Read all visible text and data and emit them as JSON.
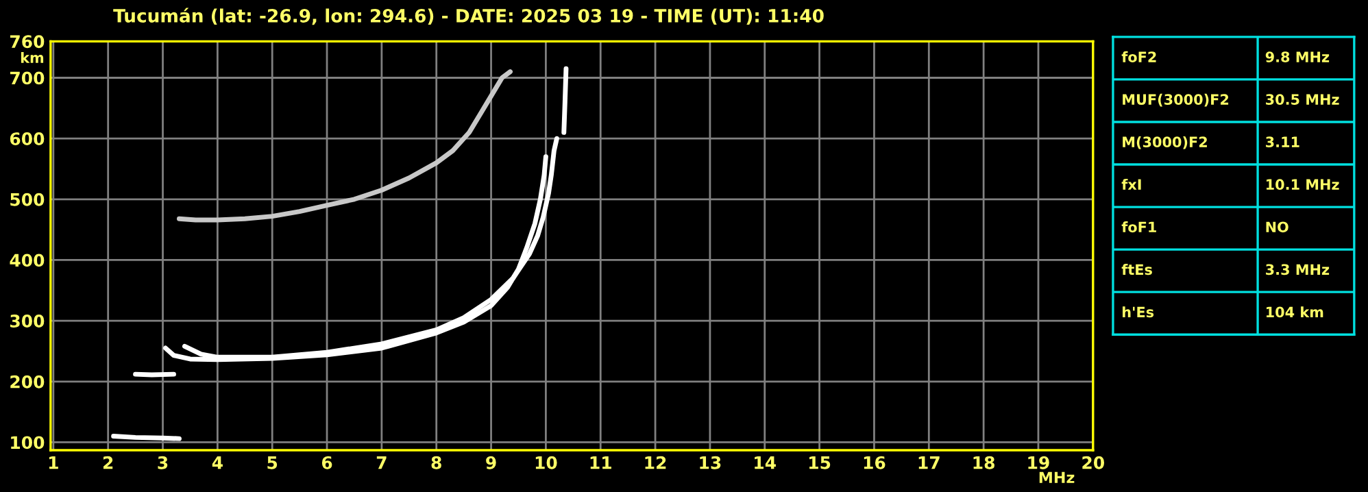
{
  "chart_data": [
    {
      "type": "line",
      "title": "Tucumán (lat: -26.9, lon: 294.6) - DATE: 2025 03 19 - TIME (UT): 11:40",
      "xlabel": "MHz",
      "ylabel": "km",
      "xlim": [
        0.95,
        20
      ],
      "ylim": [
        87,
        760
      ],
      "xticks": [
        1,
        2,
        3,
        4,
        5,
        6,
        7,
        8,
        9,
        10,
        11,
        12,
        13,
        14,
        15,
        16,
        17,
        18,
        19,
        20
      ],
      "yticks": [
        100,
        200,
        300,
        400,
        500,
        600,
        700,
        760
      ],
      "grid": true,
      "legend": false,
      "marker": "none",
      "line_style": "solid",
      "series": [
        {
          "color": "#ffffff",
          "x": [
            3.05,
            3.2,
            3.5,
            4,
            5,
            6,
            7,
            8,
            8.5,
            9,
            9.3,
            9.5,
            9.65,
            9.8,
            9.9,
            9.97,
            10.0
          ],
          "values": [
            255,
            243,
            237,
            236,
            238,
            244,
            255,
            280,
            298,
            325,
            355,
            385,
            420,
            460,
            500,
            540,
            570
          ]
        },
        {
          "color": "#ffffff",
          "x": [
            3.4,
            3.7,
            4,
            5,
            6,
            7,
            8,
            8.5,
            9,
            9.4,
            9.7,
            9.85,
            9.95,
            10.05,
            10.1,
            10.15,
            10.2
          ],
          "values": [
            258,
            245,
            240,
            240,
            248,
            262,
            285,
            305,
            335,
            370,
            410,
            440,
            470,
            510,
            540,
            580,
            600
          ]
        },
        {
          "color": "#ffffff",
          "x": [
            10.33,
            10.35,
            10.37
          ],
          "values": [
            610,
            660,
            715
          ]
        },
        {
          "color": "#c8c8c8",
          "x": [
            3.3,
            3.6,
            4,
            4.5,
            5,
            5.5,
            6,
            6.5,
            7,
            7.5,
            8,
            8.3,
            8.6,
            8.8,
            9,
            9.2,
            9.35
          ],
          "values": [
            468,
            466,
            466,
            468,
            472,
            480,
            490,
            500,
            515,
            535,
            560,
            580,
            610,
            640,
            670,
            700,
            710
          ]
        },
        {
          "color": "#ffffff",
          "x": [
            2.1,
            2.5,
            3.0,
            3.3
          ],
          "values": [
            110,
            108,
            107,
            106
          ]
        },
        {
          "color": "#ffffff",
          "x": [
            2.5,
            2.8,
            3.2
          ],
          "values": [
            212,
            211,
            212
          ]
        }
      ]
    },
    {
      "type": "other",
      "annotations": [
        "foF2",
        "9.8 MHz",
        "MUF(3000)F2",
        "30.5 MHz",
        "M(3000)F2",
        "3.11",
        "fxI",
        "10.1 MHz",
        "foF1",
        "NO",
        "ftEs",
        "3.3 MHz",
        "h'Es",
        "104 km"
      ]
    }
  ]
}
